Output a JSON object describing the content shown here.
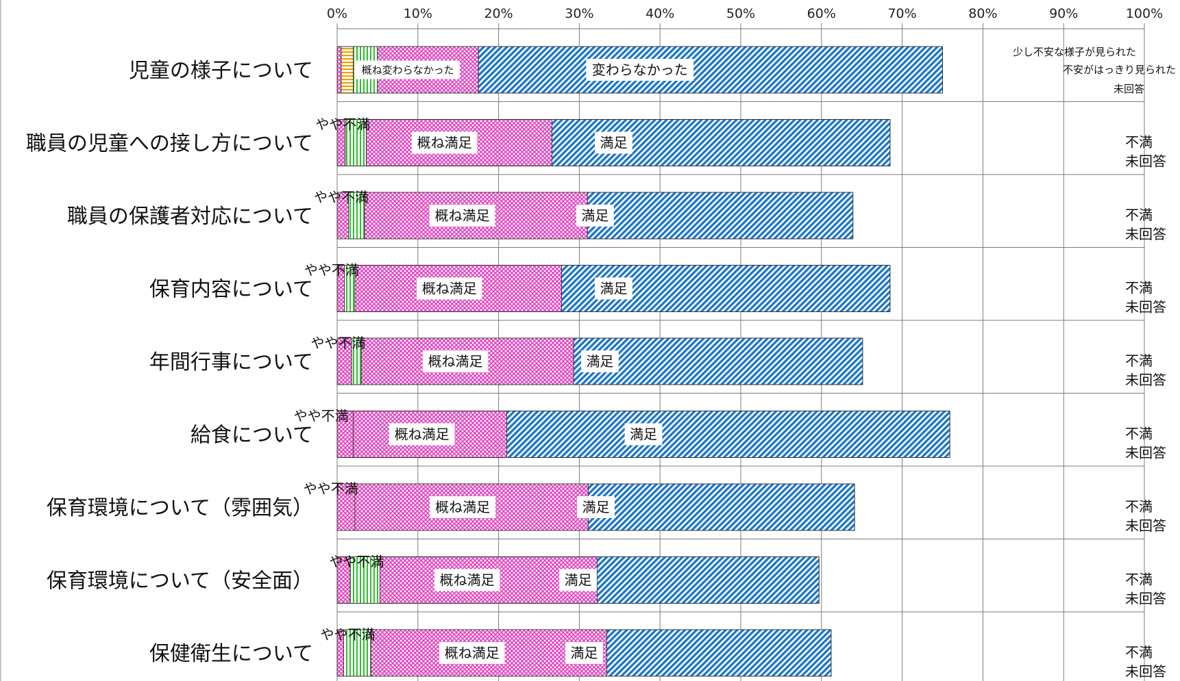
{
  "chart_data": {
    "type": "bar",
    "orientation": "horizontal",
    "stacked": "percent",
    "title": "",
    "xlabel": "",
    "ylabel": "",
    "xlim": [
      0,
      100
    ],
    "x_ticks": [
      "0%",
      "10%",
      "20%",
      "30%",
      "40%",
      "50%",
      "60%",
      "70%",
      "80%",
      "90%",
      "100%"
    ],
    "grid": true,
    "legend": "none",
    "categories": [
      "児童の様子について",
      "職員の児童への接し方について",
      "職員の保護者対応について",
      "保育内容について",
      "年間行事について",
      "給食について",
      "保育環境について（雰囲気）",
      "保育環境について（安全面）",
      "保健衛生について"
    ],
    "series": [
      {
        "labels": [
          "変わらなかった",
          "満足",
          "満足",
          "満足",
          "満足",
          "満足",
          "満足",
          "満足",
          "満足"
        ],
        "color": "#1f77c9",
        "pattern": "diag-blue",
        "values": [
          75.0,
          68.5,
          63.9,
          68.5,
          65.1,
          75.9,
          64.1,
          59.7,
          61.2
        ]
      },
      {
        "labels": [
          "概ね変わらなかった",
          "概ね満足",
          "概ね満足",
          "概ね満足",
          "概ね満足",
          "概ね満足",
          "概ね満足",
          "概ね満足",
          "概ね満足"
        ],
        "color": "#e23fc0",
        "pattern": "cross-pink",
        "values": [
          17.5,
          26.6,
          31.0,
          27.8,
          29.3,
          21.0,
          31.1,
          32.2,
          33.4
        ]
      },
      {
        "labels": [
          "少し不安な様子が見られた",
          "やや不満",
          "やや不満",
          "やや不満",
          "やや不満",
          "やや不満",
          "やや不満",
          "やや不満",
          "やや不満"
        ],
        "color": "#2fbf2f",
        "pattern": "vert-green",
        "values": [
          5.0,
          3.6,
          3.4,
          2.2,
          3.0,
          0.9,
          2.1,
          5.3,
          4.2
        ]
      },
      {
        "labels": [
          "不安がはっきり見られた",
          "不満",
          "不満",
          "不満",
          "不満",
          "不満",
          "不満",
          "不満",
          "不満"
        ],
        "color": "#f0a000",
        "pattern": "horiz-orange",
        "values": [
          2.0,
          0.3,
          0.3,
          0.6,
          0.8,
          0.2,
          0.5,
          1.2,
          0.4
        ]
      },
      {
        "labels": [
          "未回答",
          "未回答",
          "未回答",
          "未回答",
          "未回答",
          "未回答",
          "未回答",
          "未回答",
          "未回答"
        ],
        "color": "#e23fc0",
        "pattern": "cross-pink",
        "values": [
          0.5,
          1.0,
          1.4,
          0.9,
          1.8,
          2.0,
          2.2,
          1.6,
          0.8
        ]
      }
    ]
  }
}
